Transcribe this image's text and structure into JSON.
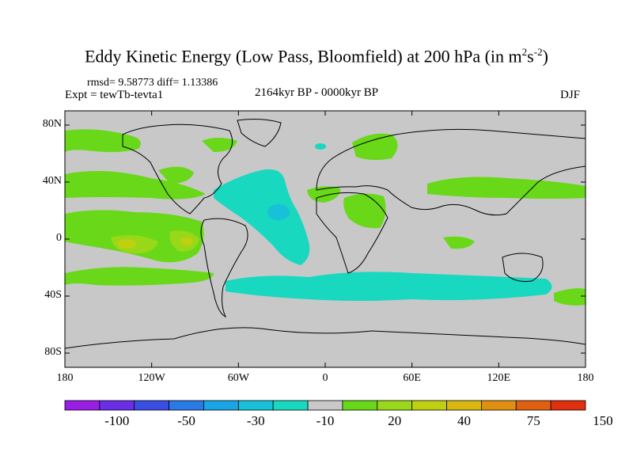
{
  "title": {
    "main": "Eddy Kinetic Energy (Low Pass, Bloomfield) at 200 hPa (in m",
    "exp1": "2",
    "mid": "s",
    "exp2": "-2",
    "end": ")"
  },
  "subtitles": {
    "stats": "rmsd= 9.58773 diff= 1.13386",
    "expt": "Expt = tewTb-tevta1",
    "period": "2164kyr BP - 0000kyr BP",
    "season": "DJF"
  },
  "axes": {
    "lat_ticks": [
      {
        "label": "80N",
        "value": 80
      },
      {
        "label": "40N",
        "value": 40
      },
      {
        "label": "0",
        "value": 0
      },
      {
        "label": "40S",
        "value": -40
      },
      {
        "label": "80S",
        "value": -80
      }
    ],
    "lon_ticks": [
      {
        "label": "180",
        "value": -180
      },
      {
        "label": "120W",
        "value": -120
      },
      {
        "label": "60W",
        "value": -60
      },
      {
        "label": "0",
        "value": 0
      },
      {
        "label": "60E",
        "value": 60
      },
      {
        "label": "120E",
        "value": 120
      },
      {
        "label": "180",
        "value": 180
      }
    ],
    "lon_range": [
      -180,
      180
    ],
    "lat_range": [
      -90,
      90
    ]
  },
  "colorbar": {
    "colors": [
      "#9a1ee6",
      "#6a2ee6",
      "#3a4ee6",
      "#2a7ae6",
      "#1aa6e6",
      "#18c0d8",
      "#18d8c0",
      "#c8c8c8",
      "#68d818",
      "#98d818",
      "#c0d010",
      "#d8b810",
      "#e09010",
      "#e06010",
      "#e03010"
    ],
    "labels": [
      {
        "text": "-100",
        "boundary": 2
      },
      {
        "text": "-50",
        "boundary": 4
      },
      {
        "text": "-30",
        "boundary": 6
      },
      {
        "text": "-10",
        "boundary": 8
      },
      {
        "text": "20",
        "boundary": 10
      },
      {
        "text": "40",
        "boundary": 12
      },
      {
        "text": "75",
        "boundary": 14
      },
      {
        "text": "150",
        "boundary": 16
      }
    ]
  },
  "palette": {
    "background": "#c8c8c8",
    "green": "#68d818",
    "lightgreen": "#98d818",
    "yellow": "#c0d010",
    "cyan": "#18d8c0",
    "teal": "#18c0d8",
    "coast": "#000000"
  }
}
